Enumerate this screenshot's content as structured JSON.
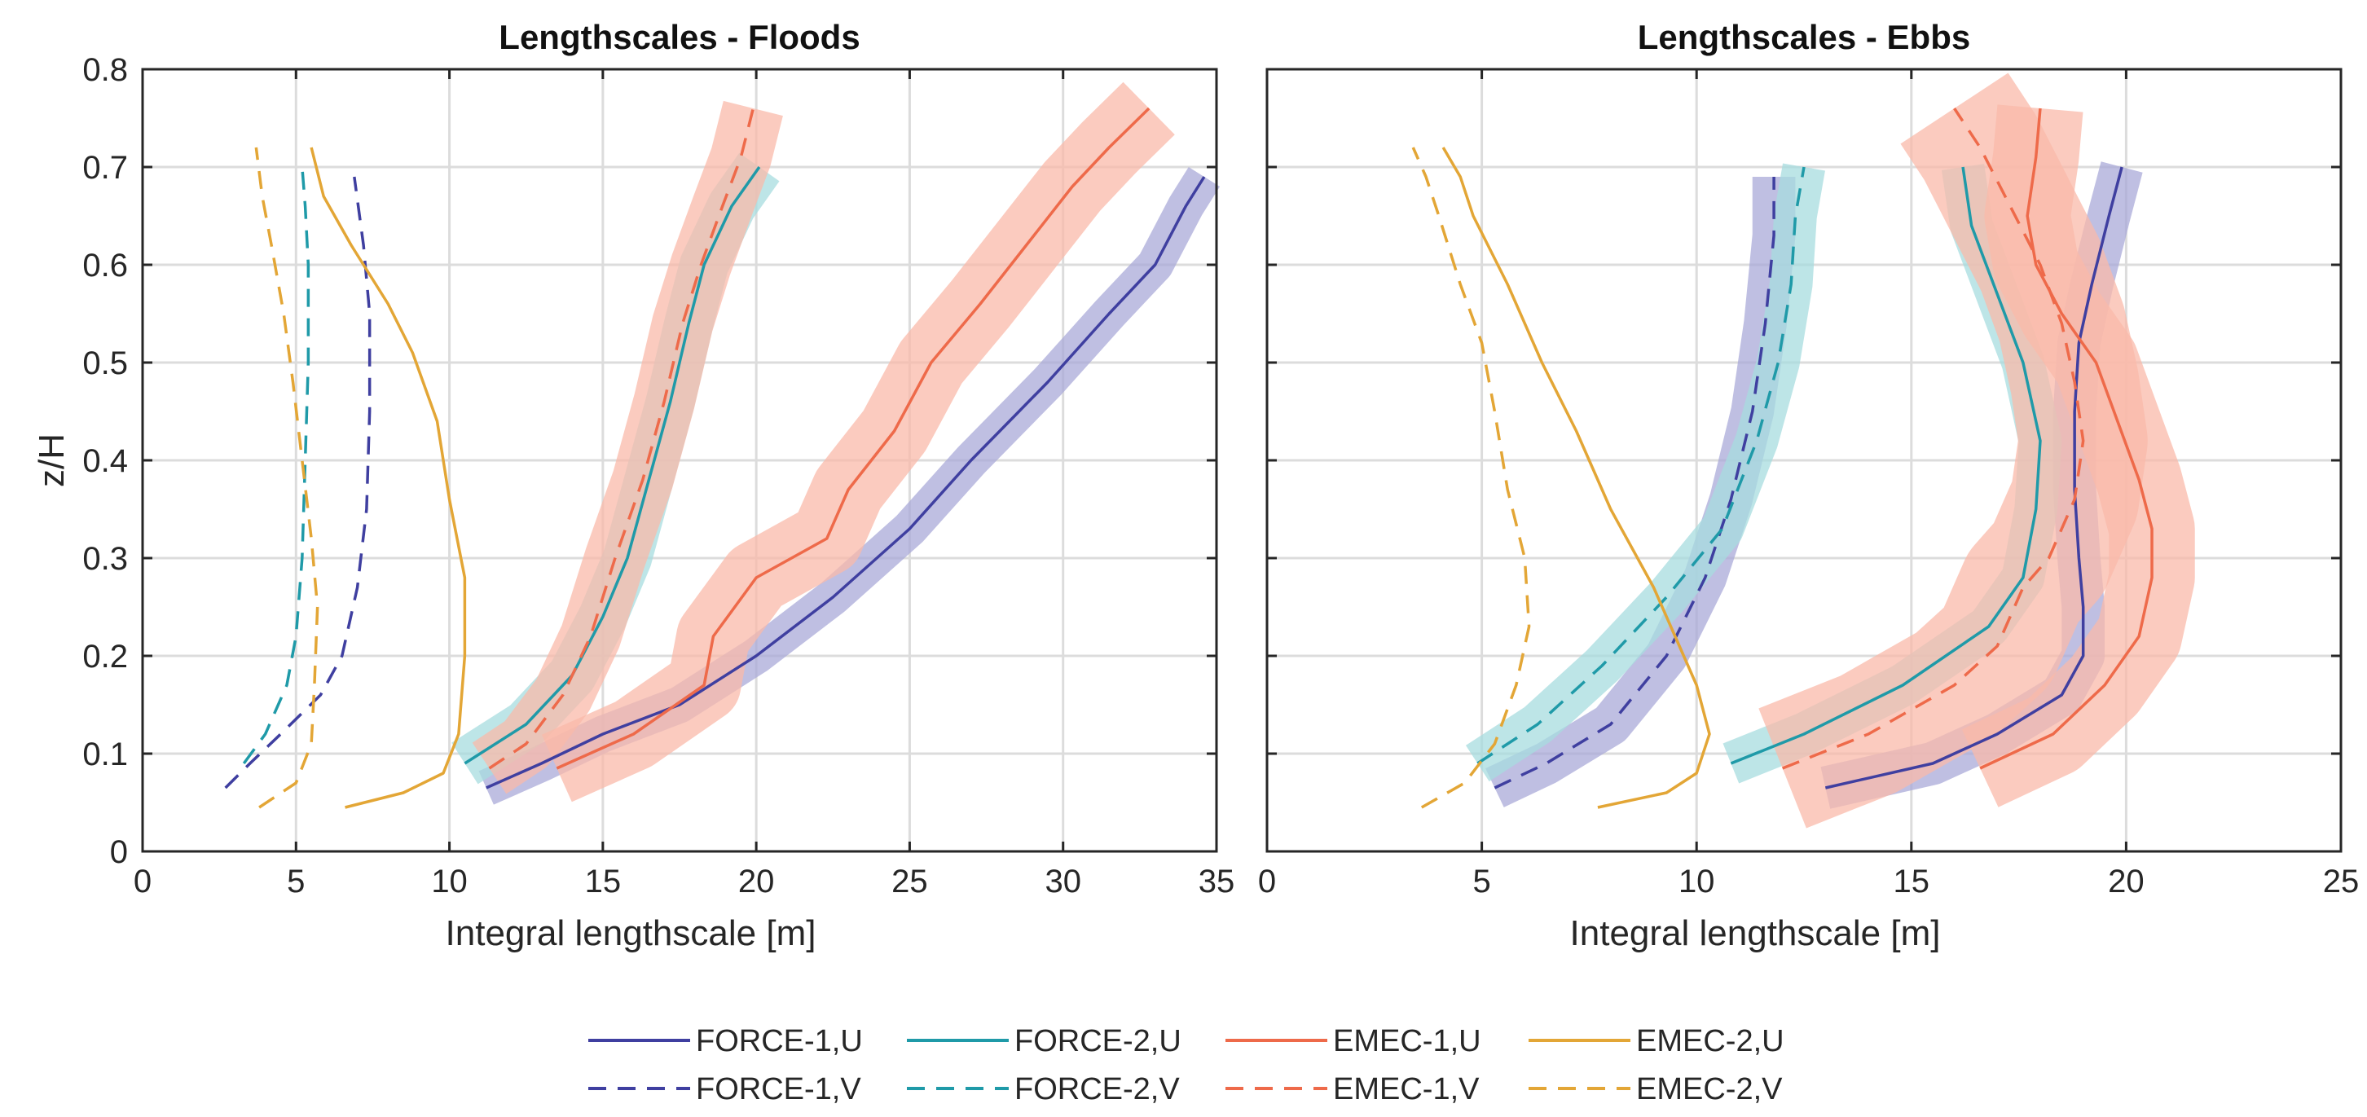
{
  "chart_data": [
    {
      "type": "line",
      "title": "Lengthscales - Floods",
      "xlabel": "Integral lengthscale [m]",
      "ylabel": "z/H",
      "xlim": [
        0,
        35
      ],
      "ylim": [
        0,
        0.8
      ],
      "xticks": [
        "0",
        "5",
        "10",
        "15",
        "20",
        "25",
        "30",
        "35"
      ],
      "yticks": [
        "0",
        "0.1",
        "0.2",
        "0.3",
        "0.4",
        "0.5",
        "0.6",
        "0.7",
        "0.8"
      ],
      "grid": true,
      "series": [
        {
          "name": "FORCE-1,U",
          "dashed": false,
          "band": 0.6,
          "points": [
            [
              11.2,
              0.065
            ],
            [
              13.0,
              0.09
            ],
            [
              15.0,
              0.12
            ],
            [
              17.5,
              0.15
            ],
            [
              20.0,
              0.2
            ],
            [
              22.5,
              0.26
            ],
            [
              25.0,
              0.33
            ],
            [
              27.0,
              0.4
            ],
            [
              29.5,
              0.48
            ],
            [
              31.5,
              0.55
            ],
            [
              33.0,
              0.6
            ],
            [
              34.0,
              0.66
            ],
            [
              34.6,
              0.69
            ]
          ]
        },
        {
          "name": "FORCE-2,U",
          "dashed": false,
          "band": 0.8,
          "points": [
            [
              10.5,
              0.09
            ],
            [
              12.5,
              0.13
            ],
            [
              14.0,
              0.18
            ],
            [
              15.0,
              0.24
            ],
            [
              15.8,
              0.3
            ],
            [
              16.5,
              0.38
            ],
            [
              17.2,
              0.46
            ],
            [
              17.8,
              0.54
            ],
            [
              18.3,
              0.6
            ],
            [
              19.2,
              0.66
            ],
            [
              20.1,
              0.7
            ]
          ]
        },
        {
          "name": "FORCE-1,V",
          "dashed": true,
          "band": 0,
          "points": [
            [
              2.7,
              0.065
            ],
            [
              3.5,
              0.09
            ],
            [
              4.5,
              0.12
            ],
            [
              5.8,
              0.16
            ],
            [
              6.5,
              0.2
            ],
            [
              7.0,
              0.27
            ],
            [
              7.3,
              0.35
            ],
            [
              7.4,
              0.45
            ],
            [
              7.4,
              0.55
            ],
            [
              7.2,
              0.62
            ],
            [
              6.9,
              0.69
            ]
          ]
        },
        {
          "name": "FORCE-2,V",
          "dashed": true,
          "band": 0,
          "points": [
            [
              3.3,
              0.09
            ],
            [
              4.0,
              0.12
            ],
            [
              4.7,
              0.17
            ],
            [
              5.0,
              0.22
            ],
            [
              5.2,
              0.3
            ],
            [
              5.3,
              0.4
            ],
            [
              5.4,
              0.5
            ],
            [
              5.4,
              0.6
            ],
            [
              5.3,
              0.66
            ],
            [
              5.2,
              0.7
            ]
          ]
        },
        {
          "name": "EMEC-1,U",
          "dashed": false,
          "band": 1.2,
          "points": [
            [
              13.5,
              0.085
            ],
            [
              16.0,
              0.12
            ],
            [
              18.3,
              0.17
            ],
            [
              18.6,
              0.22
            ],
            [
              20.0,
              0.28
            ],
            [
              22.3,
              0.32
            ],
            [
              23.0,
              0.37
            ],
            [
              24.5,
              0.43
            ],
            [
              25.7,
              0.5
            ],
            [
              27.3,
              0.56
            ],
            [
              28.8,
              0.62
            ],
            [
              30.3,
              0.68
            ],
            [
              31.5,
              0.72
            ],
            [
              32.8,
              0.76
            ]
          ]
        },
        {
          "name": "EMEC-1,V",
          "dashed": true,
          "band": 1.0,
          "points": [
            [
              11.3,
              0.085
            ],
            [
              12.5,
              0.11
            ],
            [
              13.7,
              0.16
            ],
            [
              14.6,
              0.22
            ],
            [
              15.4,
              0.3
            ],
            [
              16.3,
              0.38
            ],
            [
              17.0,
              0.46
            ],
            [
              17.6,
              0.54
            ],
            [
              18.2,
              0.6
            ],
            [
              18.9,
              0.66
            ],
            [
              19.5,
              0.71
            ],
            [
              19.9,
              0.76
            ]
          ]
        },
        {
          "name": "EMEC-2,U",
          "dashed": false,
          "band": 0,
          "points": [
            [
              6.6,
              0.045
            ],
            [
              8.5,
              0.06
            ],
            [
              9.8,
              0.08
            ],
            [
              10.3,
              0.12
            ],
            [
              10.5,
              0.2
            ],
            [
              10.5,
              0.28
            ],
            [
              10.0,
              0.36
            ],
            [
              9.6,
              0.44
            ],
            [
              8.8,
              0.51
            ],
            [
              8.0,
              0.56
            ],
            [
              6.8,
              0.62
            ],
            [
              5.9,
              0.67
            ],
            [
              5.5,
              0.72
            ]
          ]
        },
        {
          "name": "EMEC-2,V",
          "dashed": true,
          "band": 0,
          "points": [
            [
              3.8,
              0.045
            ],
            [
              5.0,
              0.07
            ],
            [
              5.5,
              0.11
            ],
            [
              5.6,
              0.17
            ],
            [
              5.7,
              0.25
            ],
            [
              5.5,
              0.32
            ],
            [
              5.2,
              0.4
            ],
            [
              4.9,
              0.48
            ],
            [
              4.6,
              0.55
            ],
            [
              4.2,
              0.62
            ],
            [
              3.9,
              0.67
            ],
            [
              3.7,
              0.72
            ]
          ]
        }
      ]
    },
    {
      "type": "line",
      "title": "Lengthscales - Ebbs",
      "xlabel": "Integral lengthscale [m]",
      "ylabel": "",
      "xlim": [
        0,
        25
      ],
      "ylim": [
        0,
        0.8
      ],
      "xticks": [
        "0",
        "5",
        "10",
        "15",
        "20",
        "25"
      ],
      "yticks": [],
      "grid": true,
      "series": [
        {
          "name": "FORCE-1,U",
          "dashed": false,
          "band": 0.5,
          "points": [
            [
              13.0,
              0.065
            ],
            [
              15.5,
              0.09
            ],
            [
              17.0,
              0.12
            ],
            [
              18.5,
              0.16
            ],
            [
              19.0,
              0.2
            ],
            [
              19.0,
              0.25
            ],
            [
              18.9,
              0.3
            ],
            [
              18.8,
              0.37
            ],
            [
              18.8,
              0.45
            ],
            [
              18.9,
              0.52
            ],
            [
              19.2,
              0.58
            ],
            [
              19.6,
              0.65
            ],
            [
              19.9,
              0.7
            ]
          ]
        },
        {
          "name": "FORCE-2,U",
          "dashed": false,
          "band": 0.5,
          "points": [
            [
              10.8,
              0.09
            ],
            [
              12.5,
              0.12
            ],
            [
              14.8,
              0.17
            ],
            [
              16.8,
              0.23
            ],
            [
              17.6,
              0.28
            ],
            [
              17.9,
              0.35
            ],
            [
              18.0,
              0.42
            ],
            [
              17.6,
              0.5
            ],
            [
              17.0,
              0.57
            ],
            [
              16.4,
              0.64
            ],
            [
              16.2,
              0.7
            ]
          ]
        },
        {
          "name": "FORCE-1,V",
          "dashed": true,
          "band": 0.5,
          "points": [
            [
              5.3,
              0.065
            ],
            [
              6.5,
              0.09
            ],
            [
              8.0,
              0.13
            ],
            [
              9.3,
              0.2
            ],
            [
              10.2,
              0.28
            ],
            [
              10.8,
              0.36
            ],
            [
              11.3,
              0.45
            ],
            [
              11.6,
              0.54
            ],
            [
              11.8,
              0.63
            ],
            [
              11.8,
              0.69
            ]
          ]
        },
        {
          "name": "FORCE-2,V",
          "dashed": true,
          "band": 0.5,
          "points": [
            [
              4.9,
              0.09
            ],
            [
              6.3,
              0.13
            ],
            [
              7.8,
              0.19
            ],
            [
              9.3,
              0.26
            ],
            [
              10.6,
              0.33
            ],
            [
              11.4,
              0.42
            ],
            [
              11.9,
              0.5
            ],
            [
              12.2,
              0.58
            ],
            [
              12.3,
              0.65
            ],
            [
              12.5,
              0.7
            ]
          ]
        },
        {
          "name": "EMEC-1,U",
          "dashed": false,
          "band": 1.0,
          "points": [
            [
              16.6,
              0.085
            ],
            [
              18.3,
              0.12
            ],
            [
              19.5,
              0.17
            ],
            [
              20.3,
              0.22
            ],
            [
              20.6,
              0.28
            ],
            [
              20.6,
              0.33
            ],
            [
              20.3,
              0.38
            ],
            [
              19.8,
              0.44
            ],
            [
              19.3,
              0.5
            ],
            [
              18.5,
              0.55
            ],
            [
              17.9,
              0.6
            ],
            [
              17.7,
              0.65
            ],
            [
              17.9,
              0.71
            ],
            [
              18.0,
              0.76
            ]
          ]
        },
        {
          "name": "EMEC-1,V",
          "dashed": true,
          "band": 1.5,
          "points": [
            [
              12.0,
              0.085
            ],
            [
              14.0,
              0.12
            ],
            [
              16.0,
              0.17
            ],
            [
              17.0,
              0.21
            ],
            [
              17.6,
              0.27
            ],
            [
              18.2,
              0.3
            ],
            [
              18.8,
              0.36
            ],
            [
              19.0,
              0.42
            ],
            [
              18.8,
              0.48
            ],
            [
              18.5,
              0.54
            ],
            [
              18.0,
              0.6
            ],
            [
              17.3,
              0.66
            ],
            [
              16.6,
              0.72
            ],
            [
              16.0,
              0.76
            ]
          ]
        },
        {
          "name": "EMEC-2,U",
          "dashed": false,
          "band": 0,
          "points": [
            [
              7.7,
              0.045
            ],
            [
              9.3,
              0.06
            ],
            [
              10.0,
              0.08
            ],
            [
              10.3,
              0.12
            ],
            [
              10.0,
              0.17
            ],
            [
              9.5,
              0.22
            ],
            [
              9.0,
              0.27
            ],
            [
              8.0,
              0.35
            ],
            [
              7.2,
              0.43
            ],
            [
              6.4,
              0.5
            ],
            [
              5.6,
              0.58
            ],
            [
              4.8,
              0.65
            ],
            [
              4.5,
              0.69
            ],
            [
              4.1,
              0.72
            ]
          ]
        },
        {
          "name": "EMEC-2,V",
          "dashed": true,
          "band": 0,
          "points": [
            [
              3.6,
              0.045
            ],
            [
              4.6,
              0.07
            ],
            [
              5.3,
              0.11
            ],
            [
              5.8,
              0.17
            ],
            [
              6.1,
              0.23
            ],
            [
              6.0,
              0.3
            ],
            [
              5.6,
              0.37
            ],
            [
              5.3,
              0.45
            ],
            [
              5.0,
              0.52
            ],
            [
              4.5,
              0.58
            ],
            [
              4.0,
              0.65
            ],
            [
              3.7,
              0.69
            ],
            [
              3.4,
              0.72
            ]
          ]
        }
      ]
    }
  ],
  "legend": {
    "placement": "bottom-center",
    "entries": [
      {
        "name": "FORCE-1,U",
        "dashed": false
      },
      {
        "name": "FORCE-2,U",
        "dashed": false
      },
      {
        "name": "EMEC-1,U",
        "dashed": false
      },
      {
        "name": "EMEC-2,U",
        "dashed": false
      },
      {
        "name": "FORCE-1,V",
        "dashed": true
      },
      {
        "name": "FORCE-2,V",
        "dashed": true
      },
      {
        "name": "EMEC-1,V",
        "dashed": true
      },
      {
        "name": "EMEC-2,V",
        "dashed": true
      }
    ]
  },
  "colors": {
    "FORCE-1": "#3f3fa0",
    "FORCE-2": "#1f9aa8",
    "EMEC-1": "#ee6a4a",
    "EMEC-2": "#e3a636",
    "FORCE-1-band": "#a9a9d8",
    "FORCE-2-band": "#a7dcdf",
    "EMEC-1-band": "#f9b9aa",
    "EMEC-2-band": "#f4dca6"
  }
}
